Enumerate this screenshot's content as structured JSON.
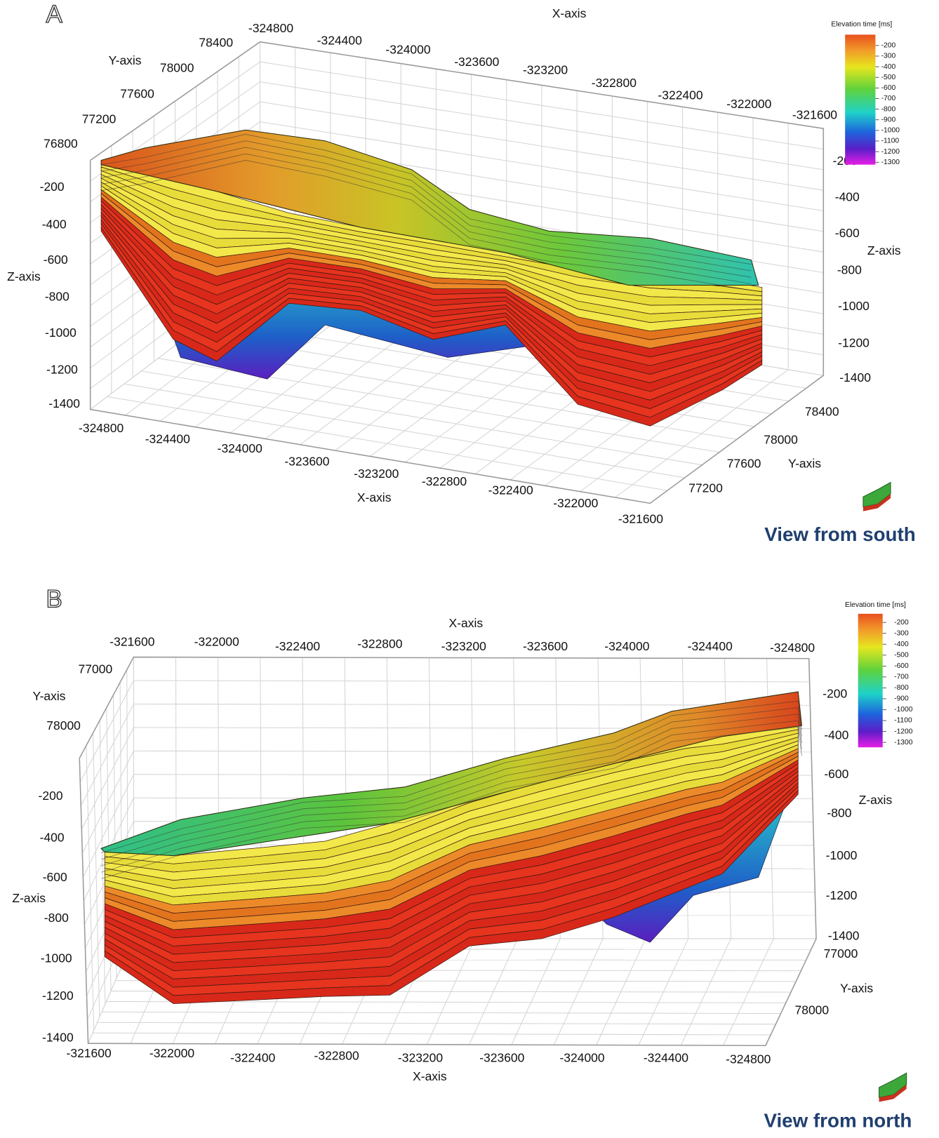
{
  "panels": [
    {
      "label": "A",
      "x_axis_title": "X-axis",
      "y_axis_title": "Y-axis",
      "z_axis_title": "Z-axis",
      "top_x_ticks": [
        -324800,
        -324400,
        -324000,
        -323600,
        -323200,
        -322800,
        -322400,
        -322000,
        -321600
      ],
      "left_y_ticks": [
        78400,
        78000,
        77600,
        77200,
        76800
      ],
      "left_z_ticks": [
        -200,
        -400,
        -600,
        -800,
        -1000,
        -1200,
        -1400
      ],
      "right_z_ticks": [
        -200,
        -400,
        -600,
        -800,
        -1000,
        -1200,
        -1400
      ],
      "bottom_x_ticks": [
        -324800,
        -324400,
        -324000,
        -323600,
        -323200,
        -322800,
        -322400,
        -322000,
        -321600
      ],
      "right_y_ticks": [
        78400,
        78000,
        77600,
        77200
      ],
      "colorbar": {
        "title": "Elevation time [ms]",
        "ticks": [
          -200,
          -300,
          -400,
          -500,
          -600,
          -700,
          -800,
          -900,
          -1000,
          -1100,
          -1200,
          -1300
        ]
      },
      "caption": "View from south"
    },
    {
      "label": "B",
      "x_axis_title": "X-axis",
      "y_axis_title": "Y-axis",
      "z_axis_title": "Z-axis",
      "top_x_ticks": [
        -321600,
        -322000,
        -322400,
        -322800,
        -323200,
        -323600,
        -324000,
        -324400,
        -324800
      ],
      "left_y_ticks": [
        77000,
        78000
      ],
      "left_z_ticks": [
        -200,
        -400,
        -600,
        -800,
        -1000,
        -1200,
        -1400
      ],
      "right_z_ticks": [
        -200,
        -400,
        -600,
        -800,
        -1000,
        -1200,
        -1400
      ],
      "bottom_x_ticks": [
        -321600,
        -322000,
        -322400,
        -322800,
        -323200,
        -323600,
        -324000,
        -324400,
        -324800
      ],
      "right_y_ticks": [
        77000,
        78000
      ],
      "colorbar": {
        "title": "Elevation time [ms]",
        "ticks": [
          -200,
          -300,
          -400,
          -500,
          -600,
          -700,
          -800,
          -900,
          -1000,
          -1100,
          -1200,
          -1300
        ]
      },
      "caption": "View from north"
    }
  ]
}
